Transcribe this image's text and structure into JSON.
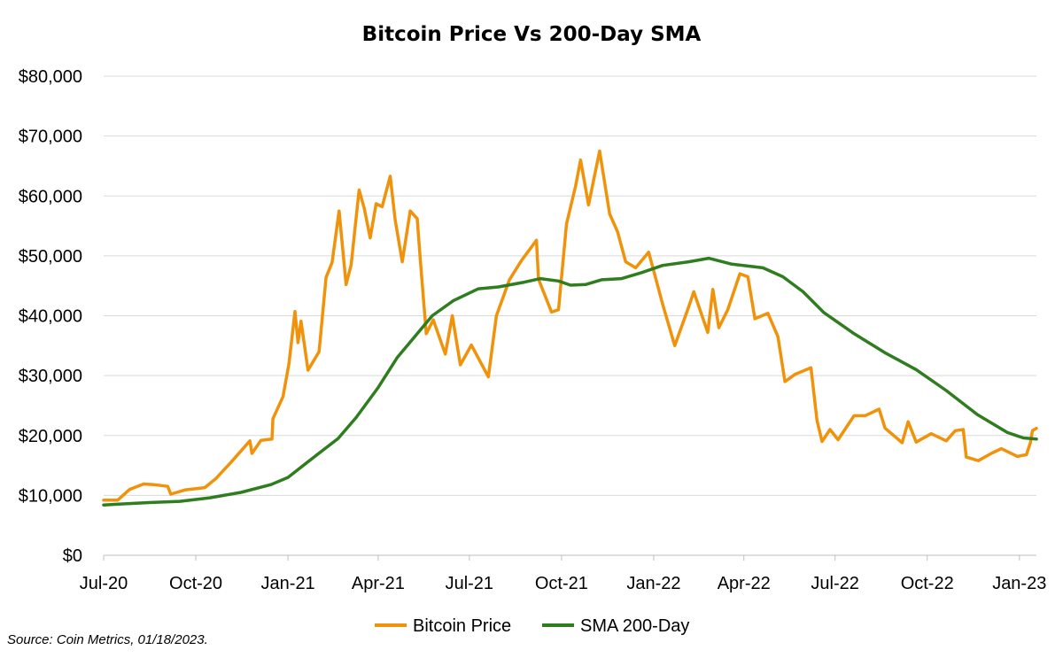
{
  "chart_data": {
    "type": "line",
    "title": "Bitcoin Price Vs 200-Day SMA",
    "source_note": "Source: Coin Metrics, 01/18/2023.",
    "xlabel": "",
    "ylabel": "",
    "x_range": [
      "2020-07-01",
      "2023-01-18"
    ],
    "ylim": [
      0,
      80000
    ],
    "y_ticks": [
      0,
      10000,
      20000,
      30000,
      40000,
      50000,
      60000,
      70000,
      80000
    ],
    "y_tick_labels": [
      "$0",
      "$10,000",
      "$20,000",
      "$30,000",
      "$40,000",
      "$50,000",
      "$60,000",
      "$70,000",
      "$80,000"
    ],
    "x_ticks": [
      "2020-07-01",
      "2020-10-01",
      "2021-01-01",
      "2021-04-01",
      "2021-07-01",
      "2021-10-01",
      "2022-01-01",
      "2022-04-01",
      "2022-07-01",
      "2022-10-01",
      "2023-01-01"
    ],
    "x_tick_labels": [
      "Jul-20",
      "Oct-20",
      "Jan-21",
      "Apr-21",
      "Jul-21",
      "Oct-21",
      "Jan-22",
      "Apr-22",
      "Jul-22",
      "Oct-22",
      "Jan-23"
    ],
    "grid": "horizontal",
    "legend_position": "bottom",
    "series": [
      {
        "name": "Bitcoin Price",
        "color": "#F0920A",
        "points": [
          [
            "2020-07-01",
            9200
          ],
          [
            "2020-07-15",
            9200
          ],
          [
            "2020-07-27",
            11000
          ],
          [
            "2020-08-10",
            11900
          ],
          [
            "2020-08-20",
            11800
          ],
          [
            "2020-09-03",
            11500
          ],
          [
            "2020-09-06",
            10200
          ],
          [
            "2020-09-20",
            10900
          ],
          [
            "2020-10-10",
            11300
          ],
          [
            "2020-10-21",
            12800
          ],
          [
            "2020-11-05",
            15500
          ],
          [
            "2020-11-24",
            19100
          ],
          [
            "2020-11-26",
            17000
          ],
          [
            "2020-12-05",
            19200
          ],
          [
            "2020-12-16",
            19400
          ],
          [
            "2020-12-17",
            22800
          ],
          [
            "2020-12-27",
            26500
          ],
          [
            "2021-01-02",
            32000
          ],
          [
            "2021-01-08",
            40700
          ],
          [
            "2021-01-11",
            35500
          ],
          [
            "2021-01-14",
            39100
          ],
          [
            "2021-01-21",
            30900
          ],
          [
            "2021-02-01",
            34000
          ],
          [
            "2021-02-08",
            46400
          ],
          [
            "2021-02-14",
            48900
          ],
          [
            "2021-02-21",
            57500
          ],
          [
            "2021-02-28",
            45200
          ],
          [
            "2021-03-05",
            48500
          ],
          [
            "2021-03-13",
            61000
          ],
          [
            "2021-03-18",
            58000
          ],
          [
            "2021-03-24",
            53000
          ],
          [
            "2021-03-30",
            58700
          ],
          [
            "2021-04-05",
            58200
          ],
          [
            "2021-04-13",
            63300
          ],
          [
            "2021-04-18",
            56000
          ],
          [
            "2021-04-25",
            49000
          ],
          [
            "2021-05-03",
            57500
          ],
          [
            "2021-05-10",
            56200
          ],
          [
            "2021-05-13",
            49500
          ],
          [
            "2021-05-19",
            37000
          ],
          [
            "2021-05-26",
            39300
          ],
          [
            "2021-06-07",
            33600
          ],
          [
            "2021-06-14",
            40000
          ],
          [
            "2021-06-22",
            31800
          ],
          [
            "2021-07-03",
            35100
          ],
          [
            "2021-07-20",
            29800
          ],
          [
            "2021-07-28",
            40000
          ],
          [
            "2021-08-10",
            46000
          ],
          [
            "2021-08-22",
            49200
          ],
          [
            "2021-09-06",
            52600
          ],
          [
            "2021-09-08",
            46100
          ],
          [
            "2021-09-21",
            40600
          ],
          [
            "2021-09-28",
            41000
          ],
          [
            "2021-10-06",
            55300
          ],
          [
            "2021-10-15",
            61600
          ],
          [
            "2021-10-20",
            66000
          ],
          [
            "2021-10-28",
            58500
          ],
          [
            "2021-11-08",
            67500
          ],
          [
            "2021-11-18",
            57000
          ],
          [
            "2021-11-26",
            54000
          ],
          [
            "2021-12-04",
            49000
          ],
          [
            "2021-12-14",
            48000
          ],
          [
            "2021-12-27",
            50600
          ],
          [
            "2022-01-10",
            41900
          ],
          [
            "2022-01-22",
            35000
          ],
          [
            "2022-02-05",
            41500
          ],
          [
            "2022-02-10",
            44000
          ],
          [
            "2022-02-24",
            37200
          ],
          [
            "2022-03-01",
            44400
          ],
          [
            "2022-03-07",
            38000
          ],
          [
            "2022-03-16",
            41000
          ],
          [
            "2022-03-28",
            47000
          ],
          [
            "2022-04-05",
            46500
          ],
          [
            "2022-04-12",
            39500
          ],
          [
            "2022-04-25",
            40400
          ],
          [
            "2022-05-05",
            36500
          ],
          [
            "2022-05-12",
            29000
          ],
          [
            "2022-05-22",
            30200
          ],
          [
            "2022-06-07",
            31300
          ],
          [
            "2022-06-13",
            22500
          ],
          [
            "2022-06-18",
            19000
          ],
          [
            "2022-06-26",
            21000
          ],
          [
            "2022-07-04",
            19300
          ],
          [
            "2022-07-20",
            23300
          ],
          [
            "2022-07-31",
            23300
          ],
          [
            "2022-08-14",
            24400
          ],
          [
            "2022-08-20",
            21200
          ],
          [
            "2022-09-06",
            18800
          ],
          [
            "2022-09-12",
            22300
          ],
          [
            "2022-09-20",
            18900
          ],
          [
            "2022-10-05",
            20300
          ],
          [
            "2022-10-20",
            19100
          ],
          [
            "2022-10-29",
            20800
          ],
          [
            "2022-11-06",
            21000
          ],
          [
            "2022-11-09",
            16400
          ],
          [
            "2022-11-21",
            15800
          ],
          [
            "2022-12-05",
            17100
          ],
          [
            "2022-12-14",
            17800
          ],
          [
            "2022-12-30",
            16500
          ],
          [
            "2023-01-08",
            16800
          ],
          [
            "2023-01-12",
            18800
          ],
          [
            "2023-01-14",
            20800
          ],
          [
            "2023-01-18",
            21200
          ]
        ]
      },
      {
        "name": "SMA 200-Day",
        "color": "#2E7D1E",
        "points": [
          [
            "2020-07-01",
            8400
          ],
          [
            "2020-08-15",
            8800
          ],
          [
            "2020-09-15",
            9000
          ],
          [
            "2020-10-15",
            9600
          ],
          [
            "2020-11-15",
            10500
          ],
          [
            "2020-12-15",
            11800
          ],
          [
            "2021-01-01",
            13000
          ],
          [
            "2021-01-20",
            15500
          ],
          [
            "2021-02-20",
            19500
          ],
          [
            "2021-03-10",
            23000
          ],
          [
            "2021-04-01",
            28000
          ],
          [
            "2021-04-20",
            33000
          ],
          [
            "2021-05-10",
            37000
          ],
          [
            "2021-05-25",
            40000
          ],
          [
            "2021-06-15",
            42500
          ],
          [
            "2021-07-10",
            44500
          ],
          [
            "2021-07-30",
            44800
          ],
          [
            "2021-08-25",
            45600
          ],
          [
            "2021-09-10",
            46200
          ],
          [
            "2021-09-28",
            45800
          ],
          [
            "2021-10-10",
            45100
          ],
          [
            "2021-10-25",
            45200
          ],
          [
            "2021-11-10",
            46000
          ],
          [
            "2021-11-30",
            46200
          ],
          [
            "2021-12-20",
            47200
          ],
          [
            "2022-01-10",
            48400
          ],
          [
            "2022-02-05",
            49000
          ],
          [
            "2022-02-25",
            49600
          ],
          [
            "2022-03-20",
            48600
          ],
          [
            "2022-04-20",
            48000
          ],
          [
            "2022-05-10",
            46500
          ],
          [
            "2022-05-30",
            44000
          ],
          [
            "2022-06-20",
            40500
          ],
          [
            "2022-07-20",
            37000
          ],
          [
            "2022-08-20",
            33800
          ],
          [
            "2022-09-20",
            31000
          ],
          [
            "2022-10-20",
            27500
          ],
          [
            "2022-11-20",
            23500
          ],
          [
            "2022-12-20",
            20500
          ],
          [
            "2023-01-05",
            19600
          ],
          [
            "2023-01-18",
            19400
          ]
        ]
      }
    ]
  }
}
